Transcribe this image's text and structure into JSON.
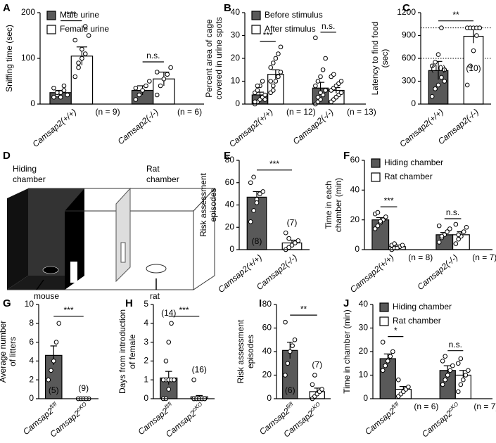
{
  "diagram": {
    "panel": "D",
    "hiding_label": [
      "Hiding",
      "chamber"
    ],
    "rat_chamber_label": [
      "Rat",
      "chamber"
    ],
    "mouse_label": "mouse",
    "rat_label": "rat"
  },
  "chart_data": [
    {
      "type": "bar",
      "panel": "A",
      "ylabel": [
        "Sniffing time (sec)"
      ],
      "categories": [
        "Camsap2(+/+)",
        "Camsap2(-/-)"
      ],
      "series": [
        {
          "name": "Male urine",
          "color": "#595959",
          "values": [
            25,
            30
          ],
          "errors": [
            5,
            10
          ],
          "points": [
            [
              15,
              20,
              25,
              30,
              20,
              35,
              25,
              15,
              40
            ],
            [
              10,
              20,
              30,
              40,
              50,
              35
            ]
          ]
        },
        {
          "name": "Female urine",
          "color": "#ffffff",
          "values": [
            105,
            55
          ],
          "errors": [
            20,
            15
          ],
          "points": [
            [
              60,
              90,
              100,
              110,
              150,
              140,
              80,
              120,
              170
            ],
            [
              20,
              40,
              55,
              65,
              80,
              70
            ]
          ]
        }
      ],
      "ylim": [
        0,
        200
      ],
      "yticks": [
        0,
        100,
        200
      ],
      "legend": "upper left",
      "significance": [
        "***",
        "n.s."
      ],
      "n_labels": [
        "(n = 9)",
        "(n = 6)"
      ]
    },
    {
      "type": "bar",
      "panel": "B",
      "ylabel": [
        "Percent area of cage",
        "covered in urine spots"
      ],
      "categories": [
        "Camsap2(+/+)",
        "Camsap2(-/-)"
      ],
      "series": [
        {
          "name": "Before stimulus",
          "color": "#595959",
          "values": [
            4,
            7
          ],
          "errors": [
            1.2,
            2.5
          ],
          "points": [
            [
              0,
              1,
              2,
              3,
              4,
              5,
              6,
              8,
              10,
              2,
              1,
              8
            ],
            [
              0,
              1,
              2,
              4,
              6,
              8,
              10,
              12,
              15,
              20,
              29,
              3,
              5
            ]
          ]
        },
        {
          "name": "After stimulus",
          "color": "#ffffff",
          "values": [
            13,
            6
          ],
          "errors": [
            2,
            1.2
          ],
          "points": [
            [
              5,
              8,
              10,
              12,
              14,
              16,
              18,
              20,
              22,
              25,
              10,
              6
            ],
            [
              1,
              2,
              3,
              4,
              5,
              6,
              7,
              8,
              9,
              10,
              12,
              13,
              3
            ]
          ]
        }
      ],
      "ylim": [
        0,
        40
      ],
      "yticks": [
        0,
        10,
        20,
        30,
        40
      ],
      "legend": "upper left",
      "significance": [
        "***",
        "n.s."
      ],
      "n_labels": [
        "(n = 12)",
        "(n = 13)"
      ]
    },
    {
      "type": "bar",
      "panel": "C",
      "ylabel": [
        "Latency to find food",
        "(sec)"
      ],
      "categories": [
        "Camsap2(+/+)",
        "Camsap2(-/-)"
      ],
      "colors": [
        "#595959",
        "#ffffff"
      ],
      "values": [
        440,
        890
      ],
      "errors": [
        120,
        90
      ],
      "points": [
        [
          100,
          200,
          250,
          350,
          450,
          500,
          550,
          650,
          1000,
          300
        ],
        [
          250,
          500,
          700,
          900,
          1000,
          1000,
          1000,
          1000,
          1000,
          1000
        ]
      ],
      "ylim": [
        0,
        1200
      ],
      "yticks": [
        0,
        300,
        600,
        900,
        1200
      ],
      "reference_lines": [
        600,
        1000
      ],
      "significance": "**",
      "n_labels": [
        "(10)",
        "(10)"
      ]
    },
    {
      "type": "bar",
      "panel": "E",
      "ylabel": [
        "Risk assessment",
        "episodes"
      ],
      "categories": [
        "Camsap2(+/+)",
        "Camsap2(-/-)"
      ],
      "colors": [
        "#595959",
        "#ffffff"
      ],
      "values": [
        47,
        6
      ],
      "errors": [
        5,
        2.5
      ],
      "points": [
        [
          25,
          35,
          45,
          50,
          52,
          60,
          65,
          42
        ],
        [
          0,
          2,
          4,
          6,
          8,
          15,
          10
        ]
      ],
      "ylim": [
        0,
        80
      ],
      "yticks": [
        0,
        20,
        40,
        60,
        80
      ],
      "significance": "***",
      "n_labels": [
        "(8)",
        "(7)"
      ]
    },
    {
      "type": "bar",
      "panel": "F",
      "ylabel": [
        "Time in each",
        "chamber (min)"
      ],
      "categories": [
        "Camsap2(+/+)",
        "Camsap2(-/-)"
      ],
      "series": [
        {
          "name": "Hiding chamber",
          "color": "#595959",
          "values": [
            20,
            10
          ],
          "errors": [
            1.5,
            1.5
          ],
          "points": [
            [
              14,
              16,
              18,
              20,
              22,
              24,
              25,
              19
            ],
            [
              5,
              8,
              10,
              12,
              14,
              16,
              9
            ]
          ]
        },
        {
          "name": "Rat chamber",
          "color": "#ffffff",
          "values": [
            2,
            10
          ],
          "errors": [
            0.5,
            2
          ],
          "points": [
            [
              0,
              1,
              2,
              2,
              3,
              3,
              4,
              1
            ],
            [
              4,
              7,
              9,
              12,
              15,
              17,
              10
            ]
          ]
        }
      ],
      "ylim": [
        0,
        60
      ],
      "yticks": [
        0,
        20,
        40,
        60
      ],
      "legend": "upper left",
      "significance": [
        "***",
        "n.s."
      ],
      "n_labels": [
        "(n = 8)",
        "(n = 7)"
      ]
    },
    {
      "type": "bar",
      "panel": "G",
      "ylabel": [
        "Average number",
        "of litters"
      ],
      "categories": [
        {
          "base": "Camsap2",
          "sup": "fl/fl"
        },
        {
          "base": "Camsap2",
          "sup": "cKO"
        }
      ],
      "colors": [
        "#595959",
        "#ffffff"
      ],
      "values": [
        4.6,
        0
      ],
      "errors": [
        1,
        0
      ],
      "points": [
        [
          2,
          3,
          4,
          6,
          8
        ],
        [
          0,
          0,
          0,
          0,
          0,
          0,
          0,
          0,
          0
        ]
      ],
      "ylim": [
        0,
        10
      ],
      "yticks": [
        0,
        2,
        4,
        6,
        8,
        10
      ],
      "significance": "***",
      "n_labels": [
        "(5)",
        "(9)"
      ]
    },
    {
      "type": "bar",
      "panel": "H",
      "ylabel": [
        "Days from introduction",
        "of female"
      ],
      "categories": [
        {
          "base": "Camsap2",
          "sup": "fl/fl"
        },
        {
          "base": "Camsap2",
          "sup": "cKO"
        }
      ],
      "colors": [
        "#595959",
        "#ffffff"
      ],
      "values": [
        1.1,
        0.1
      ],
      "errors": [
        0.35,
        0.07
      ],
      "points": [
        [
          0,
          0,
          0.5,
          1,
          1,
          1,
          1,
          1,
          1,
          1,
          1,
          2,
          3,
          4
        ],
        [
          0,
          0,
          0,
          0,
          0,
          0,
          0,
          0,
          0,
          0,
          0,
          0,
          0,
          0,
          0,
          1
        ]
      ],
      "ylim": [
        0,
        5
      ],
      "yticks": [
        0,
        1,
        2,
        3,
        4,
        5
      ],
      "significance": "***",
      "n_labels": [
        "(14)",
        "(16)"
      ]
    },
    {
      "type": "bar",
      "panel": "I",
      "ylabel": [
        "Risk assessment",
        "episodes"
      ],
      "categories": [
        {
          "base": "Camsap2",
          "sup": "fl/fl"
        },
        {
          "base": "Camsap2",
          "sup": "cKO"
        }
      ],
      "colors": [
        "#595959",
        "#ffffff"
      ],
      "values": [
        41,
        6
      ],
      "errors": [
        7,
        3
      ],
      "points": [
        [
          20,
          30,
          40,
          45,
          50,
          65
        ],
        [
          0,
          2,
          4,
          6,
          8,
          12,
          20
        ]
      ],
      "ylim": [
        0,
        80
      ],
      "yticks": [
        0,
        20,
        40,
        60,
        80
      ],
      "significance": "**",
      "n_labels": [
        "(6)",
        "(7)"
      ]
    },
    {
      "type": "bar",
      "panel": "J",
      "ylabel": [
        "Time in chamber (min)"
      ],
      "categories": [
        {
          "base": "Camsap2",
          "sup": "fl/fl"
        },
        {
          "base": "Camsap2",
          "sup": "cKO"
        }
      ],
      "series": [
        {
          "name": "Hiding chamber",
          "color": "#595959",
          "values": [
            17,
            12
          ],
          "errors": [
            2,
            2
          ],
          "points": [
            [
              12,
              14,
              16,
              18,
              20,
              24
            ],
            [
              6,
              8,
              10,
              12,
              14,
              16,
              18
            ]
          ]
        },
        {
          "name": "Rat chamber",
          "color": "#ffffff",
          "values": [
            4,
            10
          ],
          "errors": [
            1.2,
            2
          ],
          "points": [
            [
              1,
              2,
              3,
              4,
              5,
              8
            ],
            [
              3,
              6,
              8,
              10,
              12,
              15,
              17
            ]
          ]
        }
      ],
      "ylim": [
        0,
        40
      ],
      "yticks": [
        0,
        10,
        20,
        30,
        40
      ],
      "legend": "upper left",
      "significance": [
        "*",
        "n.s."
      ],
      "n_labels": [
        "(n = 6)",
        "(n = 7)"
      ]
    }
  ]
}
